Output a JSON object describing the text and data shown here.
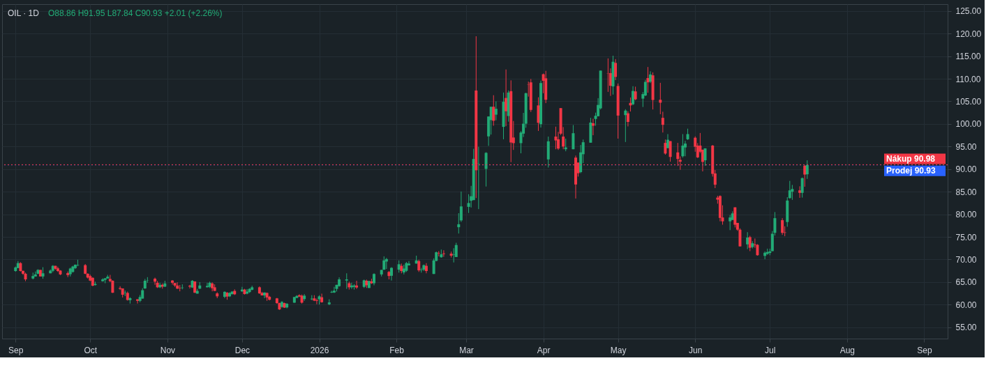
{
  "chart_data": {
    "type": "candlestick",
    "title": "OIL · 1D",
    "annotations": [
      "O88.86 H91.95 L87.84 C90.93 +2.01 (+2.26%)"
    ],
    "x": [
      "2025-09-01",
      "2025-09-02",
      "2025-09-03",
      "2025-09-04",
      "2025-09-05",
      "2025-09-08",
      "2025-09-09",
      "2025-09-10",
      "2025-09-11",
      "2025-09-12",
      "2025-09-15",
      "2025-09-16",
      "2025-09-17",
      "2025-09-18",
      "2025-09-19",
      "2025-09-22",
      "2025-09-23",
      "2025-09-24",
      "2025-09-25",
      "2025-09-26",
      "2025-09-29",
      "2025-09-30",
      "2025-10-01",
      "2025-10-02",
      "2025-10-03",
      "2025-10-06",
      "2025-10-07",
      "2025-10-08",
      "2025-10-09",
      "2025-10-10",
      "2025-10-13",
      "2025-10-14",
      "2025-10-15",
      "2025-10-16",
      "2025-10-17",
      "2025-10-20",
      "2025-10-21",
      "2025-10-22",
      "2025-10-23",
      "2025-10-24",
      "2025-10-27",
      "2025-10-28",
      "2025-10-29",
      "2025-10-30",
      "2025-10-31",
      "2025-11-03",
      "2025-11-04",
      "2025-11-05",
      "2025-11-06",
      "2025-11-07",
      "2025-11-10",
      "2025-11-11",
      "2025-11-12",
      "2025-11-13",
      "2025-11-14",
      "2025-11-17",
      "2025-11-18",
      "2025-11-19",
      "2025-11-20",
      "2025-11-21",
      "2025-11-24",
      "2025-11-25",
      "2025-11-26",
      "2025-11-27",
      "2025-11-28",
      "2025-12-01",
      "2025-12-02",
      "2025-12-03",
      "2025-12-04",
      "2025-12-05",
      "2025-12-08",
      "2025-12-09",
      "2025-12-10",
      "2025-12-11",
      "2025-12-12",
      "2025-12-15",
      "2025-12-16",
      "2025-12-17",
      "2025-12-18",
      "2025-12-19",
      "2025-12-22",
      "2025-12-23",
      "2025-12-24",
      "2025-12-25",
      "2025-12-26",
      "2025-12-29",
      "2025-12-30",
      "2025-12-31",
      "2026-01-01",
      "2026-01-02",
      "2026-01-05",
      "2026-01-06",
      "2026-01-07",
      "2026-01-08",
      "2026-01-09",
      "2026-01-12",
      "2026-01-13",
      "2026-01-14",
      "2026-01-15",
      "2026-01-16",
      "2026-01-19",
      "2026-01-20",
      "2026-01-21",
      "2026-01-22",
      "2026-01-23",
      "2026-01-26",
      "2026-01-27",
      "2026-01-28",
      "2026-01-29",
      "2026-01-30",
      "2026-02-02",
      "2026-02-03",
      "2026-02-04",
      "2026-02-05",
      "2026-02-06",
      "2026-02-09",
      "2026-02-10",
      "2026-02-11",
      "2026-02-12",
      "2026-02-13",
      "2026-02-16",
      "2026-02-17",
      "2026-02-18",
      "2026-02-19",
      "2026-02-20",
      "2026-02-23",
      "2026-02-24",
      "2026-02-25",
      "2026-02-26",
      "2026-02-27",
      "2026-03-02",
      "2026-03-03",
      "2026-03-04",
      "2026-03-05",
      "2026-03-06",
      "2026-03-09",
      "2026-03-10",
      "2026-03-11",
      "2026-03-12",
      "2026-03-13",
      "2026-03-16",
      "2026-03-17",
      "2026-03-18",
      "2026-03-19",
      "2026-03-20",
      "2026-03-23",
      "2026-03-24",
      "2026-03-25",
      "2026-03-26",
      "2026-03-27",
      "2026-03-30",
      "2026-03-31",
      "2026-04-01",
      "2026-04-02",
      "2026-04-03",
      "2026-04-06",
      "2026-04-07",
      "2026-04-08",
      "2026-04-09",
      "2026-04-10",
      "2026-04-13",
      "2026-04-14",
      "2026-04-15",
      "2026-04-16",
      "2026-04-17",
      "2026-04-20",
      "2026-04-21",
      "2026-04-22",
      "2026-04-23",
      "2026-04-24",
      "2026-04-27",
      "2026-04-28",
      "2026-04-29",
      "2026-04-30",
      "2026-05-01",
      "2026-05-04",
      "2026-05-05",
      "2026-05-06",
      "2026-05-07",
      "2026-05-08",
      "2026-05-11",
      "2026-05-12",
      "2026-05-13",
      "2026-05-14",
      "2026-05-15",
      "2026-05-18",
      "2026-05-19",
      "2026-05-20",
      "2026-05-21",
      "2026-05-22",
      "2026-05-25",
      "2026-05-26",
      "2026-05-27",
      "2026-05-28",
      "2026-05-29",
      "2026-06-01",
      "2026-06-02",
      "2026-06-03",
      "2026-06-04",
      "2026-06-05",
      "2026-06-08",
      "2026-06-09",
      "2026-06-10",
      "2026-06-11",
      "2026-06-12",
      "2026-06-15",
      "2026-06-16",
      "2026-06-17",
      "2026-06-18",
      "2026-06-19",
      "2026-06-22",
      "2026-06-23",
      "2026-06-24",
      "2026-06-25",
      "2026-06-26",
      "2026-06-29",
      "2026-06-30",
      "2026-07-01",
      "2026-07-02",
      "2026-07-03",
      "2026-07-06",
      "2026-07-07",
      "2026-07-08",
      "2026-07-09",
      "2026-07-10",
      "2026-07-13",
      "2026-07-14",
      "2026-07-15",
      "2026-07-16"
    ],
    "ohlc": [
      [
        67.45,
        68.45,
        67.3,
        68.25
      ],
      [
        68.1,
        69.65,
        68.1,
        69.2
      ],
      [
        69.2,
        69.4,
        67.35,
        67.45
      ],
      [
        67.5,
        67.5,
        66.6,
        66.85
      ],
      [
        66.85,
        67.1,
        65.2,
        65.6
      ],
      [
        65.8,
        67.1,
        65.6,
        66.35
      ],
      [
        66.25,
        67.35,
        66.25,
        66.7
      ],
      [
        66.85,
        67.85,
        66.75,
        67.7
      ],
      [
        67.7,
        67.7,
        66.25,
        66.25
      ],
      [
        66.25,
        68.3,
        65.75,
        66.95
      ],
      [
        66.95,
        67.8,
        66.95,
        67.55
      ],
      [
        67.5,
        68.75,
        67.2,
        68.6
      ],
      [
        68.6,
        68.6,
        67.75,
        67.95
      ],
      [
        68.05,
        68.4,
        67.25,
        67.45
      ],
      [
        67.55,
        67.65,
        66.55,
        66.7
      ],
      [
        67.0,
        67.35,
        66.1,
        66.55
      ],
      [
        66.75,
        68.2,
        66.25,
        68.0
      ],
      [
        67.25,
        68.6,
        67.1,
        68.45
      ],
      [
        68.1,
        68.9,
        67.9,
        68.85
      ],
      [
        68.7,
        69.95,
        68.5,
        68.8
      ],
      [
        68.75,
        69.0,
        66.75,
        66.85
      ],
      [
        66.85,
        66.95,
        65.8,
        66.0
      ],
      [
        66.35,
        66.65,
        65.2,
        65.35
      ],
      [
        65.95,
        66.05,
        64.1,
        64.2
      ],
      [
        64.35,
        65.1,
        64.25,
        64.6
      ],
      [
        65.2,
        65.85,
        65.1,
        65.6
      ],
      [
        65.5,
        65.85,
        64.75,
        65.85
      ],
      [
        65.8,
        66.6,
        65.8,
        66.2
      ],
      [
        65.7,
        66.6,
        65.0,
        65.2
      ],
      [
        65.3,
        65.4,
        62.6,
        62.65
      ],
      [
        63.7,
        64.1,
        63.25,
        63.5
      ],
      [
        63.6,
        63.6,
        61.6,
        62.2
      ],
      [
        62.6,
        63.15,
        61.9,
        62.7
      ],
      [
        62.6,
        62.9,
        60.9,
        61.05
      ],
      [
        61.0,
        61.65,
        60.25,
        61.45
      ],
      [
        61.2,
        61.2,
        60.25,
        60.85
      ],
      [
        60.85,
        62.15,
        60.55,
        61.7
      ],
      [
        61.35,
        63.65,
        61.35,
        63.2
      ],
      [
        63.6,
        65.7,
        63.5,
        65.3
      ],
      [
        65.3,
        66.1,
        64.85,
        65.35
      ],
      [
        65.75,
        66.0,
        64.4,
        65.1
      ],
      [
        64.85,
        65.25,
        63.7,
        63.85
      ],
      [
        63.85,
        64.85,
        63.7,
        64.4
      ],
      [
        64.4,
        64.7,
        63.55,
        64.0
      ],
      [
        64.0,
        65.3,
        63.9,
        64.7
      ],
      [
        65.35,
        65.45,
        64.45,
        64.85
      ],
      [
        64.8,
        64.8,
        63.95,
        64.25
      ],
      [
        64.25,
        64.95,
        63.5,
        63.55
      ],
      [
        63.7,
        64.35,
        62.95,
        63.6
      ],
      [
        63.7,
        64.5,
        63.4,
        63.8
      ],
      [
        64.2,
        64.4,
        63.6,
        64.0
      ],
      [
        63.8,
        65.45,
        63.7,
        65.3
      ],
      [
        65.15,
        65.15,
        62.6,
        62.65
      ],
      [
        62.45,
        63.5,
        62.45,
        63.05
      ],
      [
        63.55,
        65.0,
        63.5,
        64.25
      ],
      [
        63.85,
        64.85,
        63.85,
        64.15
      ],
      [
        63.95,
        65.1,
        63.7,
        64.85
      ],
      [
        64.7,
        64.95,
        62.95,
        63.65
      ],
      [
        63.85,
        64.5,
        63.05,
        63.05
      ],
      [
        62.5,
        62.75,
        61.45,
        61.85
      ],
      [
        61.75,
        62.95,
        61.45,
        62.85
      ],
      [
        62.65,
        62.8,
        61.1,
        61.8
      ],
      [
        61.85,
        62.75,
        61.7,
        62.6
      ],
      [
        62.35,
        63.0,
        62.25,
        62.9
      ],
      [
        63.05,
        63.4,
        62.15,
        62.3
      ],
      [
        62.95,
        63.95,
        62.85,
        63.35
      ],
      [
        63.35,
        63.5,
        62.25,
        62.35
      ],
      [
        62.45,
        63.45,
        62.3,
        62.9
      ],
      [
        62.8,
        63.65,
        62.6,
        63.5
      ],
      [
        63.3,
        64.2,
        63.2,
        63.85
      ],
      [
        63.85,
        64.05,
        62.4,
        62.5
      ],
      [
        62.6,
        62.85,
        62.05,
        62.05
      ],
      [
        62.05,
        62.7,
        61.45,
        62.7
      ],
      [
        62.6,
        62.7,
        60.85,
        61.6
      ],
      [
        61.75,
        61.95,
        60.95,
        61.1
      ],
      [
        61.4,
        61.5,
        60.2,
        60.35
      ],
      [
        60.35,
        60.45,
        58.85,
        58.95
      ],
      [
        59.5,
        60.8,
        59.35,
        60.6
      ],
      [
        60.35,
        60.45,
        59.3,
        59.35
      ],
      [
        59.4,
        60.35,
        59.2,
        60.2
      ],
      [
        60.45,
        61.7,
        60.4,
        61.7
      ],
      [
        61.5,
        62.1,
        61.45,
        61.95
      ],
      [
        62.1,
        62.3,
        61.7,
        61.8
      ],
      [
        62.0,
        62.25,
        60.25,
        60.45
      ],
      [
        61.25,
        62.35,
        60.85,
        62.0
      ],
      [
        61.2,
        62.1,
        61.0,
        61.35
      ],
      [
        61.4,
        62.1,
        60.8,
        60.9
      ],
      [
        61.0,
        61.35,
        60.1,
        60.85
      ],
      [
        61.2,
        62.1,
        60.05,
        61.85
      ],
      [
        61.65,
        62.45,
        60.45,
        60.55
      ],
      [
        60.1,
        61.2,
        59.9,
        60.5
      ],
      [
        62.7,
        63.1,
        62.6,
        62.85
      ],
      [
        62.7,
        63.95,
        62.6,
        63.1
      ],
      [
        63.5,
        64.4,
        62.9,
        64.4
      ],
      [
        64.1,
        66.05,
        64.0,
        65.6
      ],
      [
        65.35,
        66.95,
        63.5,
        65.6
      ],
      [
        64.75,
        65.1,
        63.35,
        63.85
      ],
      [
        63.85,
        64.85,
        63.5,
        64.25
      ],
      [
        63.95,
        64.55,
        63.35,
        64.25
      ],
      [
        64.25,
        65.3,
        63.5,
        63.8
      ],
      [
        63.95,
        65.55,
        63.7,
        65.4
      ],
      [
        65.3,
        65.55,
        63.7,
        64.3
      ],
      [
        63.7,
        65.25,
        63.7,
        65.25
      ],
      [
        65.15,
        65.75,
        64.6,
        64.75
      ],
      [
        64.75,
        66.95,
        64.3,
        66.8
      ],
      [
        66.7,
        67.7,
        66.25,
        67.7
      ],
      [
        67.75,
        70.7,
        67.7,
        69.8
      ],
      [
        69.55,
        70.35,
        67.9,
        70.1
      ],
      [
        67.25,
        67.45,
        65.6,
        66.35
      ],
      [
        66.4,
        68.3,
        65.35,
        68.15
      ],
      [
        67.75,
        69.8,
        67.1,
        68.95
      ],
      [
        68.6,
        69.1,
        66.95,
        67.45
      ],
      [
        67.15,
        68.85,
        66.7,
        68.0
      ],
      [
        67.5,
        69.45,
        67.25,
        69.2
      ],
      [
        68.7,
        69.65,
        68.7,
        69.1
      ],
      [
        69.1,
        70.85,
        69.1,
        69.8
      ],
      [
        69.65,
        69.95,
        67.25,
        67.6
      ],
      [
        67.65,
        68.15,
        67.1,
        67.75
      ],
      [
        67.75,
        68.9,
        67.45,
        68.75
      ],
      [
        68.6,
        69.2,
        66.95,
        67.45
      ],
      [
        66.8,
        70.25,
        66.8,
        69.8
      ],
      [
        69.7,
        71.75,
        69.6,
        71.6
      ],
      [
        71.45,
        71.85,
        70.7,
        71.35
      ],
      [
        70.5,
        72.2,
        70.4,
        71.15
      ],
      [
        71.35,
        72.05,
        70.6,
        71.2
      ],
      [
        71.3,
        71.75,
        70.45,
        70.85
      ],
      [
        71.05,
        72.5,
        69.35,
        71.15
      ],
      [
        70.55,
        73.7,
        70.55,
        73.2
      ],
      [
        77.15,
        80.25,
        75.75,
        77.8
      ],
      [
        78.65,
        85.05,
        78.3,
        81.75
      ],
      [
        81.65,
        84.45,
        80.3,
        82.5
      ],
      [
        83.0,
        86.3,
        81.5,
        84.0
      ],
      [
        83.15,
        94.5,
        83.15,
        92.25
      ],
      [
        107.4,
        119.4,
        83.6,
        89.75
      ],
      [
        91.25,
        94.95,
        81.15,
        91.3
      ],
      [
        90.05,
        93.75,
        86.15,
        93.6
      ],
      [
        97.25,
        101.65,
        95.15,
        101.65
      ],
      [
        100.85,
        103.8,
        97.65,
        103.8
      ],
      [
        103.8,
        106.35,
        99.6,
        100.7
      ],
      [
        102.05,
        105.0,
        100.8,
        103.35
      ],
      [
        99.35,
        106.95,
        96.6,
        104.9
      ],
      [
        105.75,
        112.05,
        99.5,
        102.8
      ],
      [
        101.75,
        107.4,
        100.5,
        106.95
      ],
      [
        107.25,
        109.65,
        91.55,
        95.9
      ],
      [
        97.0,
        100.65,
        94.25,
        95.75
      ],
      [
        95.75,
        98.4,
        93.5,
        98.1
      ],
      [
        97.85,
        102.45,
        97.1,
        100.05
      ],
      [
        100.05,
        106.9,
        99.15,
        106.8
      ],
      [
        108.75,
        109.35,
        106.05,
        108.7
      ],
      [
        109.2,
        109.95,
        102.65,
        103.1
      ],
      [
        104.1,
        105.9,
        98.45,
        100.25
      ],
      [
        99.95,
        109.6,
        99.2,
        109.05
      ],
      [
        111.0,
        111.15,
        106.8,
        109.55
      ],
      [
        110.1,
        111.75,
        104.6,
        105.35
      ],
      [
        92.15,
        97.2,
        90.35,
        96.15
      ],
      [
        97.2,
        99.4,
        94.4,
        96.35
      ],
      [
        96.6,
        98.25,
        94.25,
        94.55
      ],
      [
        103.5,
        103.5,
        97.55,
        97.85
      ],
      [
        97.2,
        99.3,
        94.4,
        95.0
      ],
      [
        94.4,
        96.75,
        93.95,
        94.8
      ],
      [
        94.4,
        99.75,
        94.4,
        97.95
      ],
      [
        92.55,
        93.0,
        83.5,
        86.6
      ],
      [
        91.45,
        91.45,
        88.35,
        89.1
      ],
      [
        89.35,
        95.35,
        89.1,
        93.7
      ],
      [
        93.3,
        96.55,
        91.35,
        95.95
      ],
      [
        95.85,
        101.35,
        95.85,
        100.3
      ],
      [
        100.15,
        101.15,
        97.5,
        99.6
      ],
      [
        101.1,
        102.5,
        99.6,
        101.8
      ],
      [
        101.7,
        105.7,
        101.7,
        104.2
      ],
      [
        103.45,
        111.8,
        103.2,
        111.8
      ],
      [
        111.2,
        114.5,
        107.1,
        111.15
      ],
      [
        111.25,
        112.3,
        106.2,
        108.45
      ],
      [
        108.3,
        115.1,
        106.5,
        113.75
      ],
      [
        113.5,
        114.35,
        109.7,
        110.4
      ],
      [
        108.4,
        108.95,
        96.75,
        101.85
      ],
      [
        101.95,
        103.25,
        96.0,
        102.95
      ],
      [
        102.35,
        102.8,
        99.45,
        100.45
      ],
      [
        104.65,
        105.85,
        102.75,
        104.1
      ],
      [
        104.35,
        108.35,
        104.15,
        107.3
      ],
      [
        107.2,
        108.25,
        105.25,
        105.45
      ],
      [
        105.6,
        107.05,
        103.75,
        106.6
      ],
      [
        106.3,
        109.75,
        106.15,
        109.3
      ],
      [
        110.15,
        112.6,
        106.9,
        109.2
      ],
      [
        109.35,
        111.65,
        109.05,
        110.95
      ],
      [
        110.75,
        111.4,
        103.2,
        105.3
      ],
      [
        105.35,
        109.1,
        102.15,
        104.7
      ],
      [
        101.35,
        102.7,
        98.1,
        99.8
      ],
      [
        95.8,
        96.55,
        93.2,
        93.45
      ],
      [
        94.65,
        97.75,
        94.65,
        96.5
      ],
      [
        96.2,
        96.2,
        91.65,
        92.7
      ],
      [
        93.7,
        95.8,
        90.7,
        92.25
      ],
      [
        92.05,
        92.8,
        89.85,
        91.65
      ],
      [
        92.85,
        97.75,
        92.55,
        95.2
      ],
      [
        94.8,
        96.25,
        92.85,
        95.65
      ],
      [
        96.6,
        98.95,
        96.45,
        97.75
      ],
      [
        96.95,
        97.25,
        93.85,
        94.95
      ],
      [
        95.2,
        95.75,
        92.45,
        92.6
      ],
      [
        95.2,
        98.0,
        93.55,
        93.85
      ],
      [
        94.3,
        94.3,
        89.5,
        91.6
      ],
      [
        91.95,
        94.6,
        90.75,
        94.6
      ],
      [
        95.2,
        95.35,
        88.35,
        88.95
      ],
      [
        89.05,
        89.8,
        85.8,
        86.55
      ],
      [
        83.7,
        84.1,
        82.35,
        83.25
      ],
      [
        84.05,
        84.2,
        78.45,
        79.2
      ],
      [
        79.3,
        82.0,
        77.7,
        78.45
      ],
      [
        78.45,
        79.85,
        76.5,
        79.3
      ],
      [
        78.75,
        80.65,
        78.75,
        80.2
      ],
      [
        81.55,
        81.55,
        77.1,
        77.7
      ],
      [
        78.1,
        78.1,
        76.35,
        76.6
      ],
      [
        76.6,
        76.9,
        72.9,
        72.9
      ],
      [
        73.35,
        76.05,
        72.3,
        74.85
      ],
      [
        74.95,
        75.25,
        71.85,
        72.6
      ],
      [
        72.75,
        74.05,
        72.45,
        73.6
      ],
      [
        73.35,
        74.65,
        72.6,
        73.2
      ],
      [
        73.25,
        73.4,
        70.85,
        70.95
      ],
      [
        70.8,
        71.8,
        70.05,
        71.5
      ],
      [
        71.25,
        72.4,
        71.05,
        71.65
      ],
      [
        71.45,
        72.4,
        70.95,
        71.8
      ],
      [
        71.85,
        76.3,
        71.85,
        75.7
      ],
      [
        75.9,
        80.5,
        75.3,
        79.15
      ],
      [
        78.7,
        79.15,
        75.45,
        75.9
      ],
      [
        76.0,
        77.35,
        75.15,
        75.9
      ],
      [
        78.3,
        83.8,
        77.25,
        83.05
      ],
      [
        83.6,
        87.4,
        83.45,
        85.3
      ],
      [
        85.0,
        86.5,
        83.2,
        85.6
      ],
      [
        85.3,
        86.2,
        83.65,
        84.75
      ],
      [
        84.75,
        88.15,
        83.7,
        88.0
      ],
      [
        90.75,
        90.9,
        86.1,
        88.8
      ],
      [
        88.86,
        91.95,
        87.84,
        90.93
      ]
    ],
    "colors": [
      "#22ab76",
      "#22ab76",
      "#f23645",
      "#f23645",
      "#f23645",
      "#22ab76",
      "#22ab76",
      "#22ab76",
      "#f23645",
      "#22ab76",
      "#22ab76",
      "#22ab76",
      "#f23645",
      "#f23645",
      "#f23645",
      "#f23645",
      "#22ab76",
      "#22ab76",
      "#22ab76",
      "#22ab76",
      "#f23645",
      "#f23645",
      "#f23645",
      "#f23645",
      "#22ab76",
      "#22ab76",
      "#22ab76",
      "#22ab76",
      "#f23645",
      "#f23645",
      "#f23645",
      "#f23645",
      "#22ab76",
      "#f23645",
      "#22ab76",
      "#f23645",
      "#22ab76",
      "#22ab76",
      "#22ab76",
      "#22ab76",
      "#f23645",
      "#f23645",
      "#22ab76",
      "#f23645",
      "#22ab76",
      "#f23645",
      "#f23645",
      "#f23645",
      "#f23645",
      "#22ab76",
      "#f23645",
      "#22ab76",
      "#f23645",
      "#22ab76",
      "#22ab76",
      "#22ab76",
      "#22ab76",
      "#f23645",
      "#f23645",
      "#f23645",
      "#22ab76",
      "#f23645",
      "#22ab76",
      "#22ab76",
      "#f23645",
      "#22ab76",
      "#f23645",
      "#22ab76",
      "#22ab76",
      "#22ab76",
      "#f23645",
      "#f23645",
      "#22ab76",
      "#f23645",
      "#f23645",
      "#f23645",
      "#f23645",
      "#22ab76",
      "#f23645",
      "#22ab76",
      "#22ab76",
      "#22ab76",
      "#f23645",
      "#f23645",
      "#22ab76",
      "#22ab76",
      "#f23645",
      "#f23645",
      "#22ab76",
      "#f23645",
      "#22ab76",
      "#22ab76",
      "#22ab76",
      "#22ab76",
      "#22ab76",
      "#22ab76",
      "#f23645",
      "#22ab76",
      "#22ab76",
      "#f23645",
      "#22ab76",
      "#f23645",
      "#22ab76",
      "#f23645",
      "#22ab76",
      "#22ab76",
      "#22ab76",
      "#22ab76",
      "#f23645",
      "#22ab76",
      "#22ab76",
      "#f23645",
      "#22ab76",
      "#22ab76",
      "#22ab76",
      "#22ab76",
      "#f23645",
      "#22ab76",
      "#22ab76",
      "#f23645",
      "#22ab76",
      "#22ab76",
      "#f23645",
      "#22ab76",
      "#f23645",
      "#f23645",
      "#22ab76",
      "#22ab76",
      "#22ab76",
      "#22ab76",
      "#22ab76",
      "#22ab76",
      "#22ab76",
      "#f23645",
      "#22ab76",
      "#22ab76",
      "#22ab76",
      "#22ab76",
      "#f23645",
      "#22ab76",
      "#22ab76",
      "#f23645",
      "#22ab76",
      "#f23645",
      "#f23645",
      "#22ab76",
      "#22ab76",
      "#22ab76",
      "#f23645",
      "#f23645",
      "#f23645",
      "#22ab76",
      "#f23645",
      "#f23645",
      "#22ab76",
      "#f23645",
      "#f23645",
      "#f23645",
      "#f23645",
      "#22ab76",
      "#22ab76",
      "#f23645",
      "#f23645",
      "#22ab76",
      "#22ab76",
      "#22ab76",
      "#f23645",
      "#22ab76",
      "#22ab76",
      "#22ab76",
      "#f23645",
      "#f23645",
      "#22ab76",
      "#f23645",
      "#f23645",
      "#22ab76",
      "#f23645",
      "#f23645",
      "#22ab76",
      "#f23645",
      "#22ab76",
      "#22ab76",
      "#f23645",
      "#22ab76",
      "#f23645",
      "#f23645",
      "#f23645",
      "#f23645",
      "#22ab76",
      "#f23645",
      "#f23645",
      "#f23645",
      "#22ab76",
      "#22ab76",
      "#22ab76",
      "#f23645",
      "#f23645",
      "#f23645",
      "#f23645",
      "#22ab76",
      "#f23645",
      "#f23645",
      "#f23645",
      "#f23645",
      "#f23645",
      "#22ab76",
      "#22ab76",
      "#f23645",
      "#f23645",
      "#f23645",
      "#22ab76",
      "#f23645",
      "#22ab76",
      "#f23645",
      "#f23645",
      "#22ab76",
      "#22ab76",
      "#22ab76",
      "#22ab76",
      "#22ab76",
      "#f23645",
      "#f23645",
      "#22ab76",
      "#22ab76",
      "#22ab76",
      "#f23645",
      "#22ab76",
      "#f23645",
      "#22ab76"
    ],
    "xlim": [
      "2025-08-28",
      "2026-09-09"
    ],
    "xticks": [
      {
        "value": "2025-09-01",
        "label": "Sep"
      },
      {
        "value": "2025-10-01",
        "label": "Oct"
      },
      {
        "value": "2025-11-01",
        "label": "Nov"
      },
      {
        "value": "2025-12-01",
        "label": "Dec"
      },
      {
        "value": "2026-01-01",
        "label": "2026"
      },
      {
        "value": "2026-02-01",
        "label": "Feb"
      },
      {
        "value": "2026-03-01",
        "label": "Mar"
      },
      {
        "value": "2026-04-01",
        "label": "Apr"
      },
      {
        "value": "2026-05-01",
        "label": "May"
      },
      {
        "value": "2026-06-01",
        "label": "Jun"
      },
      {
        "value": "2026-07-01",
        "label": "Jul"
      },
      {
        "value": "2026-08-01",
        "label": "Aug"
      },
      {
        "value": "2026-09-01",
        "label": "Sep"
      }
    ],
    "ylim": [
      52.5,
      126.5
    ],
    "yticks": [
      {
        "value": 55,
        "label": "55.00"
      },
      {
        "value": 60,
        "label": "60.00"
      },
      {
        "value": 65,
        "label": "65.00"
      },
      {
        "value": 70,
        "label": "70.00"
      },
      {
        "value": 75,
        "label": "75.00"
      },
      {
        "value": 80,
        "label": "80.00"
      },
      {
        "value": 85,
        "label": "85.00"
      },
      {
        "value": 90,
        "label": "90.00"
      },
      {
        "value": 95,
        "label": "95.00"
      },
      {
        "value": 100,
        "label": "100.00"
      },
      {
        "value": 105,
        "label": "105.00"
      },
      {
        "value": 110,
        "label": "110.00"
      },
      {
        "value": 115,
        "label": "115.00"
      },
      {
        "value": 120,
        "label": "120.00"
      },
      {
        "value": 125,
        "label": "125.00"
      }
    ],
    "ref_lines": [
      {
        "axis": "y",
        "value": 90.93,
        "label": "Prodej 90.93",
        "color": "#2962ff",
        "line_style": "dotted"
      },
      {
        "axis": "y",
        "value": 90.98,
        "label": "Nákup 90.98",
        "color": "#f23645",
        "line_style": "dotted"
      }
    ],
    "grid": true
  }
}
